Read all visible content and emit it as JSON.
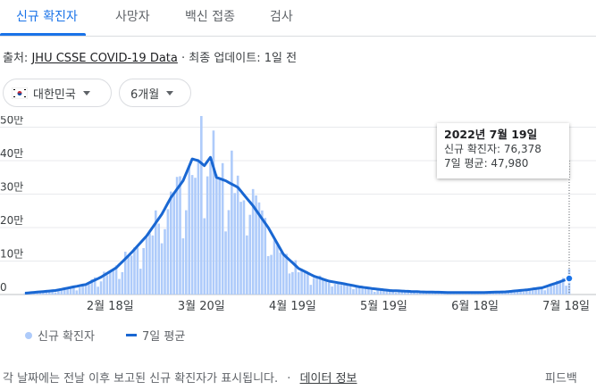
{
  "tabs": [
    {
      "label": "신규 확진자"
    },
    {
      "label": "사망자"
    },
    {
      "label": "백신 접종"
    },
    {
      "label": "검사"
    }
  ],
  "source": {
    "prefix": "출처:",
    "link": "JHU CSSE COVID-19 Data",
    "sep": "·",
    "update": "최종 업데이트: 1일 전"
  },
  "filters": {
    "region": "대한민국",
    "period": "6개월"
  },
  "tooltip": {
    "date": "2022년 7월 19일",
    "cases_label": "신규 확진자: 76,378",
    "avg_label": "7일 평균: 47,980"
  },
  "legend": {
    "cases": "신규 확진자",
    "avg": "7일 평균"
  },
  "footer": {
    "note": "각 날짜에는 전날 이후 보고된 신규 확진자가 표시됩니다.",
    "sep": "·",
    "data_info": "데이터 정보",
    "feedback": "피드백"
  },
  "colors": {
    "accent": "#1a73e8",
    "bar": "#aecbfa",
    "line": "#1967d2"
  },
  "chart_data": {
    "type": "bar",
    "yticks": [
      {
        "value": 0,
        "label": "0"
      },
      {
        "value": 100000,
        "label": "10만"
      },
      {
        "value": 200000,
        "label": "20만"
      },
      {
        "value": 300000,
        "label": "30만"
      },
      {
        "value": 400000,
        "label": "40만"
      },
      {
        "value": 500000,
        "label": "50만"
      }
    ],
    "ylim": [
      0,
      520000
    ],
    "xticks": [
      {
        "label": "2월 18일",
        "day": 28
      },
      {
        "label": "3월 20일",
        "day": 58
      },
      {
        "label": "4월 19일",
        "day": 88
      },
      {
        "label": "5월 19일",
        "day": 118
      },
      {
        "label": "6월 18일",
        "day": 148
      },
      {
        "label": "7월 18일",
        "day": 178
      }
    ],
    "xlim": [
      0,
      179
    ],
    "anchors": [
      [
        0,
        4000
      ],
      [
        10,
        12000
      ],
      [
        20,
        30000
      ],
      [
        25,
        52000
      ],
      [
        30,
        80000
      ],
      [
        35,
        125000
      ],
      [
        40,
        175000
      ],
      [
        45,
        240000
      ],
      [
        48,
        290000
      ],
      [
        52,
        340000
      ],
      [
        55,
        405000
      ],
      [
        57,
        400000
      ],
      [
        59,
        385000
      ],
      [
        61,
        410000
      ],
      [
        63,
        350000
      ],
      [
        66,
        340000
      ],
      [
        70,
        320000
      ],
      [
        75,
        265000
      ],
      [
        80,
        200000
      ],
      [
        85,
        120000
      ],
      [
        90,
        78000
      ],
      [
        95,
        55000
      ],
      [
        100,
        40000
      ],
      [
        105,
        32000
      ],
      [
        110,
        23000
      ],
      [
        115,
        17000
      ],
      [
        120,
        12000
      ],
      [
        130,
        8000
      ],
      [
        140,
        6000
      ],
      [
        150,
        6000
      ],
      [
        158,
        8000
      ],
      [
        165,
        14000
      ],
      [
        170,
        20000
      ],
      [
        175,
        35000
      ],
      [
        179,
        48000
      ]
    ],
    "selected_day": 179,
    "selected_value": 76378,
    "selected_avg": 47980
  }
}
